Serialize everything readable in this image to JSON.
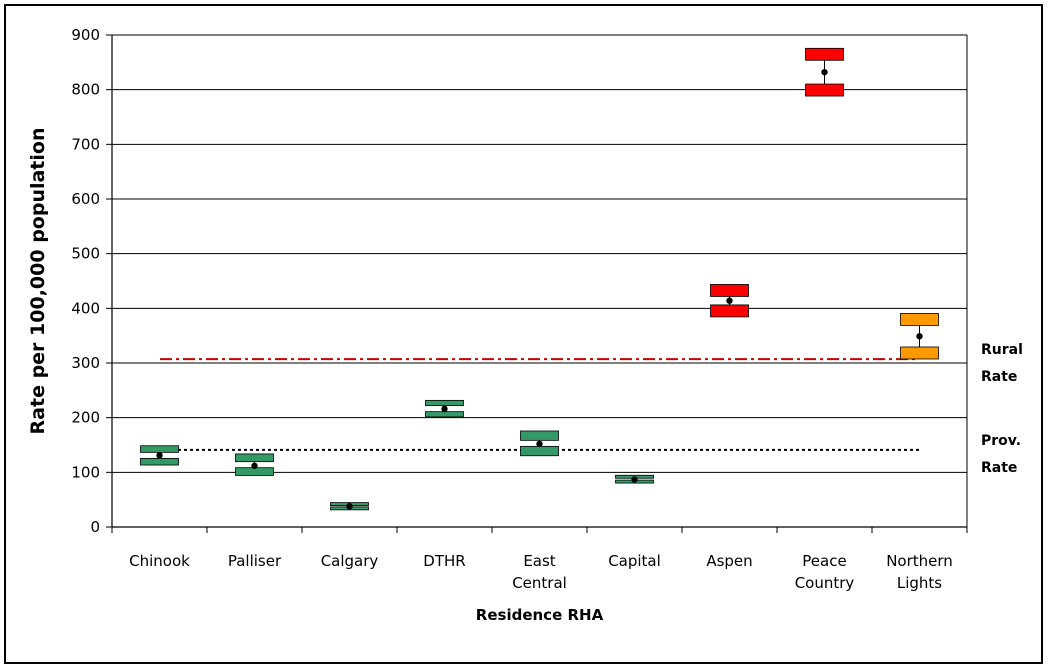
{
  "chart_data": {
    "type": "scatter",
    "title": "",
    "xlabel": "Residence RHA",
    "ylabel": "Rate per 100,000 population",
    "ylim": [
      0,
      900
    ],
    "yticks": [
      0,
      100,
      200,
      300,
      400,
      500,
      600,
      700,
      800,
      900
    ],
    "grid": "horizontal",
    "categories": [
      [
        "Chinook"
      ],
      [
        "Palliser"
      ],
      [
        "Calgary"
      ],
      [
        "DTHR"
      ],
      [
        "East",
        "Central"
      ],
      [
        "Capital"
      ],
      [
        "Aspen"
      ],
      [
        "Peace",
        "Country"
      ],
      [
        "Northern",
        "Lights"
      ]
    ],
    "points": [
      {
        "category": "Chinook",
        "rate": 131,
        "lower": 117,
        "upper": 145,
        "color": "#339966"
      },
      {
        "category": "Palliser",
        "rate": 112,
        "lower": 98,
        "upper": 130,
        "color": "#339966"
      },
      {
        "category": "Calgary",
        "rate": 38,
        "lower": 35,
        "upper": 41,
        "color": "#339966"
      },
      {
        "category": "DTHR",
        "rate": 216,
        "lower": 205,
        "upper": 228,
        "color": "#339966"
      },
      {
        "category": "East Central",
        "rate": 152,
        "lower": 134,
        "upper": 172,
        "color": "#339966"
      },
      {
        "category": "Capital",
        "rate": 87,
        "lower": 84,
        "upper": 91,
        "color": "#339966"
      },
      {
        "category": "Aspen",
        "rate": 414,
        "lower": 388,
        "upper": 440,
        "color": "#ff0000"
      },
      {
        "category": "Peace Country",
        "rate": 832,
        "lower": 792,
        "upper": 872,
        "color": "#ff0000"
      },
      {
        "category": "Northern Lights",
        "rate": 349,
        "lower": 311,
        "upper": 387,
        "color": "#ff9900"
      }
    ],
    "reference_lines": [
      {
        "label": [
          "Rural",
          "Rate"
        ],
        "value": 307,
        "color": "#cc0000",
        "style": "dash-dot"
      },
      {
        "label": [
          "Prov.",
          "Rate"
        ],
        "value": 141,
        "color": "#000000",
        "style": "dotted"
      }
    ]
  }
}
